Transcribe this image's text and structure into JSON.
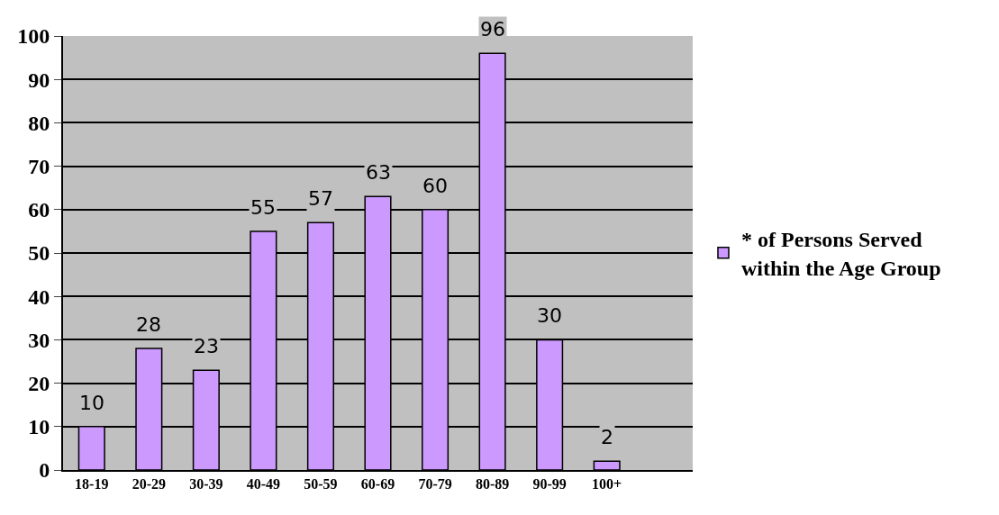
{
  "chart_data": {
    "type": "bar",
    "categories": [
      "18-19",
      "20-29",
      "30-39",
      "40-49",
      "50-59",
      "60-69",
      "70-79",
      "80-89",
      "90-99",
      "100+",
      null
    ],
    "series": [
      {
        "name": "* of Persons Served within the Age Group",
        "color": "#cc99ff",
        "values": [
          10,
          28,
          23,
          55,
          57,
          63,
          60,
          96,
          30,
          2,
          null
        ]
      }
    ],
    "ylim": [
      0,
      100
    ],
    "yticks": [
      0,
      10,
      20,
      30,
      40,
      50,
      60,
      70,
      80,
      90,
      100
    ],
    "grid": "y",
    "legend": "right",
    "data_labels": true
  }
}
